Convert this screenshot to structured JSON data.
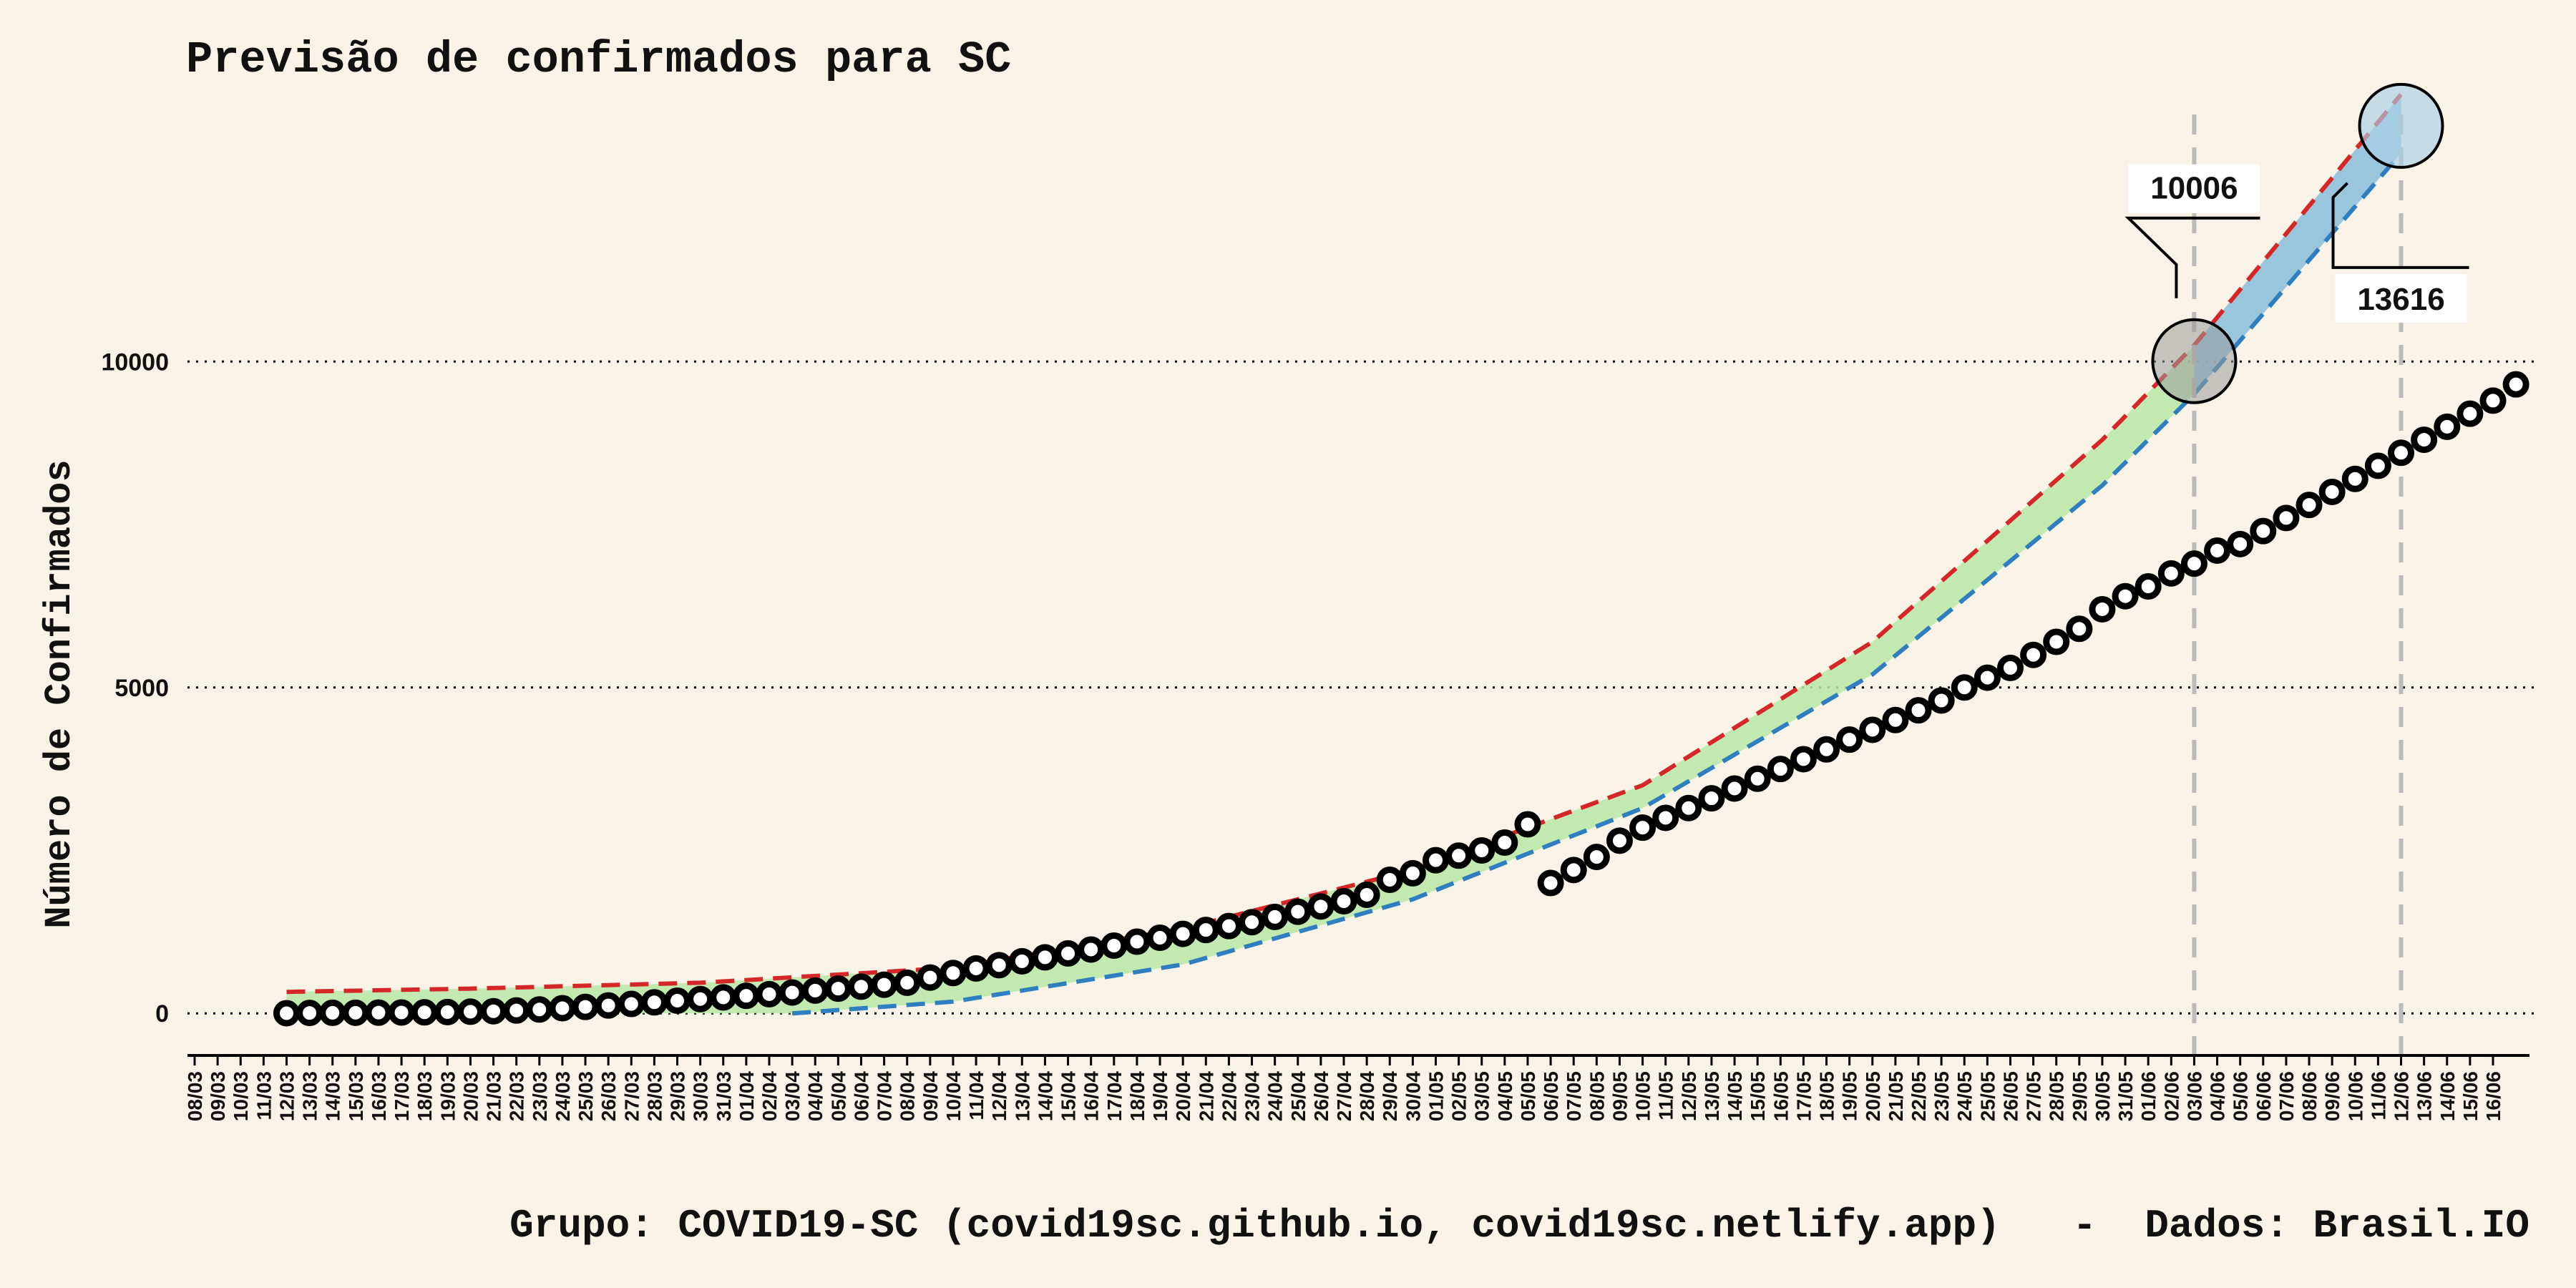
{
  "chart_data": {
    "type": "line",
    "title": "Previsão de confirmados para SC",
    "xlabel": "",
    "ylabel": "Número de Confirmados",
    "caption": "Grupo: COVID19-SC (covid19sc.github.io, covid19sc.netlify.app)   -  Dados: Brasil.IO",
    "x_ticks": [
      "08/03",
      "09/03",
      "10/03",
      "11/03",
      "12/03",
      "13/03",
      "14/03",
      "15/03",
      "16/03",
      "17/03",
      "18/03",
      "19/03",
      "20/03",
      "21/03",
      "22/03",
      "23/03",
      "24/03",
      "25/03",
      "26/03",
      "27/03",
      "28/03",
      "29/03",
      "30/03",
      "31/03",
      "01/04",
      "02/04",
      "03/04",
      "04/04",
      "05/04",
      "06/04",
      "07/04",
      "08/04",
      "09/04",
      "10/04",
      "11/04",
      "12/04",
      "13/04",
      "14/04",
      "15/04",
      "16/04",
      "17/04",
      "18/04",
      "19/04",
      "20/04",
      "21/04",
      "22/04",
      "23/04",
      "24/04",
      "25/04",
      "26/04",
      "27/04",
      "28/04",
      "29/04",
      "30/04",
      "01/05",
      "02/05",
      "03/05",
      "04/05",
      "05/05",
      "06/05",
      "07/05",
      "08/05",
      "09/05",
      "10/05",
      "11/05",
      "12/05",
      "13/05",
      "14/05",
      "15/05",
      "16/05",
      "17/05",
      "18/05",
      "19/05",
      "20/05",
      "21/05",
      "22/05",
      "23/05",
      "24/05",
      "25/05",
      "26/05",
      "27/05",
      "28/05",
      "29/05",
      "30/05",
      "31/05",
      "01/06",
      "02/06",
      "03/06",
      "04/06",
      "05/06",
      "06/06",
      "07/06",
      "08/06",
      "09/06",
      "10/06",
      "11/06",
      "12/06",
      "13/06",
      "14/06",
      "15/06",
      "16/06"
    ],
    "y_ticks": [
      0,
      5000,
      10000
    ],
    "ylim": [
      -700,
      13900
    ],
    "grid": "horizontal dotted",
    "confirmed_start_date": "12/03",
    "confirmed": [
      3,
      7,
      9,
      10,
      12,
      14,
      16,
      20,
      26,
      33,
      45,
      60,
      80,
      100,
      122,
      145,
      170,
      195,
      220,
      245,
      270,
      295,
      320,
      350,
      380,
      410,
      440,
      470,
      550,
      620,
      690,
      740,
      800,
      860,
      920,
      980,
      1040,
      1100,
      1160,
      1220,
      1280,
      1340,
      1400,
      1480,
      1560,
      1640,
      1720,
      1820,
      2050,
      2150,
      2350,
      2420,
      2500,
      2620,
      2900,
      2000,
      2200,
      2400,
      2650,
      2850,
      3000,
      3150,
      3300,
      3450,
      3600,
      3750,
      3900,
      4050,
      4200,
      4350,
      4500,
      4650,
      4800,
      5000,
      5150,
      5300,
      5500,
      5700,
      5900,
      6200,
      6400,
      6550,
      6750,
      6900,
      7100,
      7200,
      7400,
      7600,
      7800,
      8000,
      8200,
      8400,
      8600,
      8800,
      9000,
      9200,
      9400,
      9650
    ],
    "upper_dates": [
      "12/03",
      "20/03",
      "30/03",
      "10/04",
      "20/04",
      "30/04",
      "10/05",
      "20/05",
      "30/05",
      "03/06",
      "12/06"
    ],
    "upper_values": [
      330,
      380,
      470,
      700,
      1300,
      2200,
      3500,
      5700,
      8800,
      10250,
      14100
    ],
    "lower_dates": [
      "03/04",
      "10/04",
      "20/04",
      "30/04",
      "10/05",
      "20/05",
      "30/05",
      "03/06",
      "12/06"
    ],
    "lower_values": [
      0,
      180,
      750,
      1750,
      3150,
      5200,
      8100,
      9500,
      13200
    ],
    "band_note_values": [
      10006,
      13616
    ],
    "forecast_dates": [
      "03/06",
      "12/06"
    ],
    "callouts": [
      "10006",
      "13616"
    ],
    "colors": {
      "background": "#f8f3e6",
      "upper_line": "#d62728",
      "lower_line": "#2e7ec0",
      "band": "#b8e8a6",
      "forecast_band": "#8fc1db",
      "marker_fill": "#ffffff",
      "marker_edge": "#000000",
      "highlight_circle_1": "#9a9a9a",
      "highlight_circle_2": "#a9cfe6",
      "vline": "#bbbbbb"
    }
  }
}
